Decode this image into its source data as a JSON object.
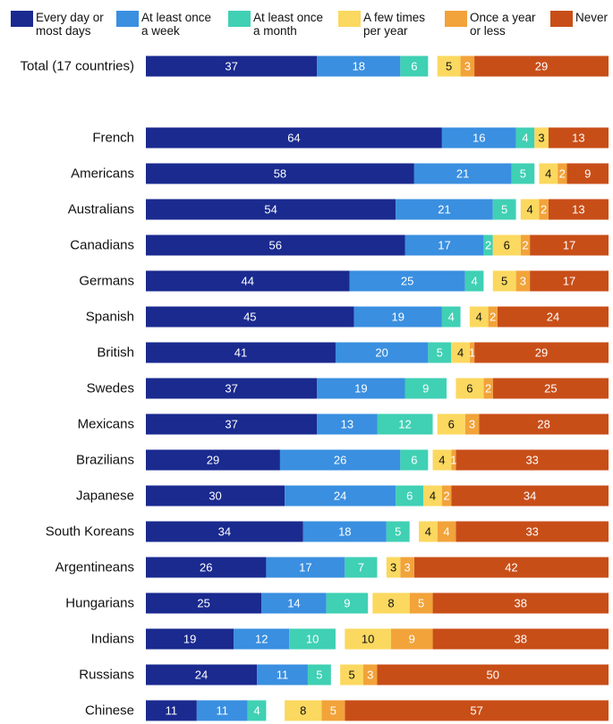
{
  "chart_data": {
    "type": "bar",
    "orientation": "horizontal",
    "stacked": true,
    "diverging": true,
    "title": "",
    "xlabel": "",
    "ylabel": "",
    "grid": false,
    "legend_position": "top",
    "categories": [
      "Total (17 countries)",
      "French",
      "Americans",
      "Australians",
      "Canadians",
      "Germans",
      "Spanish",
      "British",
      "Swedes",
      "Mexicans",
      "Brazilians",
      "Japanese",
      "South Koreans",
      "Argentineans",
      "Hungarians",
      "Indians",
      "Russians",
      "Chinese"
    ],
    "highlight_category": "French",
    "highlight_color": "#c0522b",
    "series": [
      {
        "name": "Every day or\nmost days",
        "color": "#1a2a8f",
        "label_color": "#ffffff",
        "values": [
          37,
          64,
          58,
          54,
          56,
          44,
          45,
          41,
          37,
          37,
          29,
          30,
          34,
          26,
          25,
          19,
          24,
          11
        ]
      },
      {
        "name": "At least once\na week",
        "color": "#3a8fe0",
        "label_color": "#ffffff",
        "values": [
          18,
          16,
          21,
          21,
          17,
          25,
          19,
          20,
          19,
          13,
          26,
          24,
          18,
          17,
          14,
          12,
          11,
          11
        ]
      },
      {
        "name": "At least once\na month",
        "color": "#40d0b4",
        "label_color": "#ffffff",
        "values": [
          6,
          4,
          5,
          5,
          2,
          4,
          4,
          5,
          9,
          12,
          6,
          6,
          5,
          7,
          9,
          10,
          5,
          4
        ]
      },
      {
        "name": "A few times\nper year",
        "color": "#fbd85f",
        "label_color": "#111111",
        "values": [
          5,
          3,
          4,
          4,
          6,
          5,
          4,
          4,
          6,
          6,
          4,
          4,
          4,
          3,
          8,
          10,
          5,
          8
        ]
      },
      {
        "name": "Once a year\nor less",
        "color": "#f2a33a",
        "label_color": "#ffffff",
        "values": [
          3,
          0,
          2,
          2,
          2,
          3,
          2,
          1,
          2,
          3,
          1,
          2,
          4,
          3,
          5,
          9,
          3,
          5
        ]
      },
      {
        "name": "Never",
        "color": "#c84e18",
        "label_color": "#ffffff",
        "values": [
          29,
          13,
          9,
          13,
          17,
          17,
          24,
          29,
          25,
          28,
          33,
          34,
          33,
          42,
          38,
          38,
          50,
          57
        ]
      }
    ]
  }
}
